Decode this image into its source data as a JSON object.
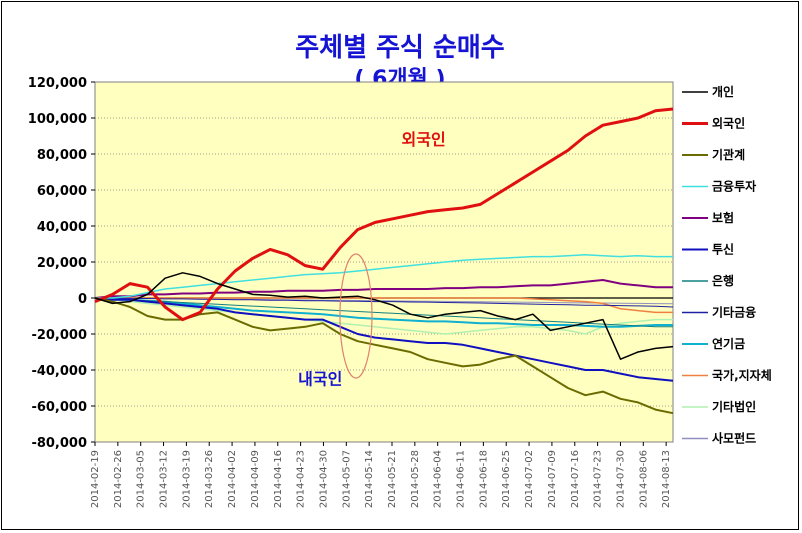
{
  "chart_data": {
    "type": "line",
    "title": "주체별 주식 순매수",
    "subtitle": "( 6개월 )",
    "ylim": [
      -80000,
      120000
    ],
    "y_ticks": [
      120000,
      100000,
      80000,
      60000,
      40000,
      20000,
      0,
      -20000,
      -40000,
      -60000,
      -80000
    ],
    "y_tick_labels": [
      "120,000",
      "100,000",
      "80,000",
      "60,000",
      "40,000",
      "20,000",
      "0",
      "-20,000",
      "-40,000",
      "-60,000",
      "-80,000"
    ],
    "x_tick_labels": [
      "2014-02-19",
      "2014-02-26",
      "2014-03-05",
      "2014-03-12",
      "2014-03-19",
      "2014-03-26",
      "2014-04-02",
      "2014-04-09",
      "2014-04-16",
      "2014-04-23",
      "2014-04-30",
      "2014-05-07",
      "2014-05-14",
      "2014-05-21",
      "2014-05-28",
      "2014-06-04",
      "2014-06-11",
      "2014-06-18",
      "2014-06-25",
      "2014-07-02",
      "2014-07-09",
      "2014-07-16",
      "2014-07-23",
      "2014-07-30",
      "2014-08-06",
      "2014-08-13"
    ],
    "plot_background": "#ffffc0",
    "grid": "horizontal dotted",
    "legend_position": "right",
    "annotations": [
      {
        "text": "외국인",
        "color": "#e01010",
        "x_index": 17.5,
        "y": 85000
      },
      {
        "text": "내국인",
        "color": "#1414d2",
        "x_index": 11.6,
        "y": -48000
      }
    ],
    "highlight_ellipse": {
      "x_index": 14.9,
      "y": -10000,
      "color": "#e08070"
    },
    "series": [
      {
        "name": "개인",
        "color": "#000000",
        "width": 1.5,
        "values": [
          0,
          -3000,
          -2000,
          2000,
          11000,
          14000,
          12000,
          8000,
          5000,
          2000,
          1500,
          500,
          1000,
          0,
          500,
          1000,
          -1000,
          -4000,
          -9000,
          -11000,
          -9000,
          -8000,
          -7000,
          -10000,
          -12000,
          -9000,
          -18000,
          -16000,
          -14000,
          -12000,
          -34000,
          -30000,
          -28000,
          -27000
        ]
      },
      {
        "name": "외국인",
        "color": "#e01010",
        "width": 3,
        "values": [
          -2000,
          2000,
          8000,
          6000,
          -5000,
          -12000,
          -8000,
          5000,
          15000,
          22000,
          27000,
          24000,
          18000,
          16000,
          28000,
          38000,
          42000,
          44000,
          46000,
          48000,
          49000,
          50000,
          52000,
          58000,
          64000,
          70000,
          76000,
          82000,
          90000,
          96000,
          98000,
          100000,
          104000,
          105000
        ]
      },
      {
        "name": "기관계",
        "color": "#6b6b00",
        "width": 2,
        "values": [
          0,
          -2000,
          -5000,
          -10000,
          -12000,
          -12000,
          -9000,
          -8000,
          -12000,
          -16000,
          -18000,
          -17000,
          -16000,
          -14000,
          -20000,
          -24000,
          -26000,
          -28000,
          -30000,
          -34000,
          -36000,
          -38000,
          -37000,
          -34000,
          -32000,
          -38000,
          -44000,
          -50000,
          -54000,
          -52000,
          -56000,
          -58000,
          -62000,
          -64000
        ]
      },
      {
        "name": "금융투자",
        "color": "#40e0e0",
        "width": 1.5,
        "values": [
          0,
          0,
          1000,
          3000,
          5000,
          6000,
          7000,
          8000,
          9000,
          10000,
          11000,
          12000,
          13000,
          13500,
          14000,
          15000,
          16000,
          17000,
          18000,
          19000,
          20000,
          21000,
          21500,
          22000,
          22500,
          23000,
          23000,
          23500,
          24000,
          23500,
          23000,
          23500,
          23000,
          23000
        ]
      },
      {
        "name": "보험",
        "color": "#800080",
        "width": 2,
        "values": [
          0,
          1000,
          1000,
          2000,
          2000,
          2500,
          2500,
          3000,
          3000,
          3500,
          3500,
          4000,
          4000,
          4000,
          4500,
          4500,
          5000,
          5000,
          5000,
          5000,
          5500,
          5500,
          6000,
          6000,
          6500,
          7000,
          7000,
          8000,
          9000,
          10000,
          8000,
          7000,
          6000,
          6000
        ]
      },
      {
        "name": "투신",
        "color": "#1010c0",
        "width": 2,
        "values": [
          0,
          -1000,
          -1000,
          -2000,
          -3000,
          -4000,
          -5000,
          -6000,
          -8000,
          -9000,
          -10000,
          -11000,
          -12000,
          -12000,
          -16000,
          -20000,
          -22000,
          -23000,
          -24000,
          -25000,
          -25000,
          -26000,
          -28000,
          -30000,
          -32000,
          -34000,
          -36000,
          -38000,
          -40000,
          -40000,
          -42000,
          -44000,
          -45000,
          -46000
        ]
      },
      {
        "name": "은행",
        "color": "#108080",
        "width": 1,
        "values": [
          0,
          -500,
          -1000,
          -1500,
          -2000,
          -2500,
          -3000,
          -3500,
          -4000,
          -4500,
          -5000,
          -5500,
          -6000,
          -6500,
          -7000,
          -7500,
          -8000,
          -8500,
          -9000,
          -9500,
          -10000,
          -10500,
          -11000,
          -11500,
          -12000,
          -12500,
          -13000,
          -13500,
          -14000,
          -14500,
          -15000,
          -15500,
          -16000,
          -16000
        ]
      },
      {
        "name": "기타금융",
        "color": "#2020a0",
        "width": 1,
        "values": [
          0,
          0,
          -200,
          -300,
          -500,
          -500,
          -700,
          -800,
          -1000,
          -1000,
          -1200,
          -1300,
          -1500,
          -1500,
          -1700,
          -1800,
          -2000,
          -2000,
          -2200,
          -2300,
          -2500,
          -2600,
          -2800,
          -3000,
          -3200,
          -3400,
          -3600,
          -3800,
          -4000,
          -4000,
          -4200,
          -4400,
          -4600,
          -5000
        ]
      },
      {
        "name": "연기금",
        "color": "#10b0d0",
        "width": 2,
        "values": [
          0,
          -500,
          -1000,
          -1500,
          -2000,
          -3000,
          -4000,
          -5000,
          -6000,
          -7000,
          -7500,
          -8000,
          -8500,
          -9000,
          -10000,
          -11000,
          -11500,
          -12000,
          -12500,
          -13000,
          -13000,
          -13500,
          -14000,
          -14000,
          -14500,
          -15000,
          -15000,
          -15000,
          -15500,
          -16000,
          -16000,
          -15500,
          -15000,
          -15000
        ]
      },
      {
        "name": "국가,지자체",
        "color": "#f08040",
        "width": 1.5,
        "values": [
          0,
          0,
          0,
          0,
          0,
          0,
          0,
          0,
          0,
          0,
          0,
          0,
          0,
          0,
          0,
          0,
          0,
          0,
          0,
          0,
          0,
          0,
          0,
          0,
          0,
          -500,
          -1000,
          -1500,
          -2000,
          -3000,
          -6000,
          -7000,
          -8000,
          -8000
        ]
      },
      {
        "name": "기타법인",
        "color": "#b0f0b0",
        "width": 1.5,
        "values": [
          0,
          -1000,
          -2000,
          -3000,
          -4000,
          -5000,
          -6000,
          -7000,
          -8000,
          -9000,
          -10000,
          -11000,
          -12000,
          -13000,
          -14000,
          -15000,
          -16000,
          -17000,
          -18000,
          -19000,
          -20000,
          -19000,
          -18000,
          -17000,
          -16000,
          -16000,
          -17000,
          -18000,
          -20000,
          -16000,
          -14000,
          -13000,
          -12000,
          -12000
        ]
      },
      {
        "name": "사모펀드",
        "color": "#9090c0",
        "width": 1,
        "values": [
          0,
          0,
          0,
          -200,
          -300,
          -400,
          -500,
          -600,
          -700,
          -800,
          -900,
          -1000,
          -1100,
          -1200,
          -1300,
          -1400,
          -1500,
          -1600,
          -1700,
          -1800,
          -1900,
          -2000,
          -2100,
          -2200,
          -2300,
          -2400,
          -2500,
          -2600,
          -2700,
          -2800,
          -2900,
          -3000,
          -3100,
          -3200
        ]
      }
    ]
  }
}
